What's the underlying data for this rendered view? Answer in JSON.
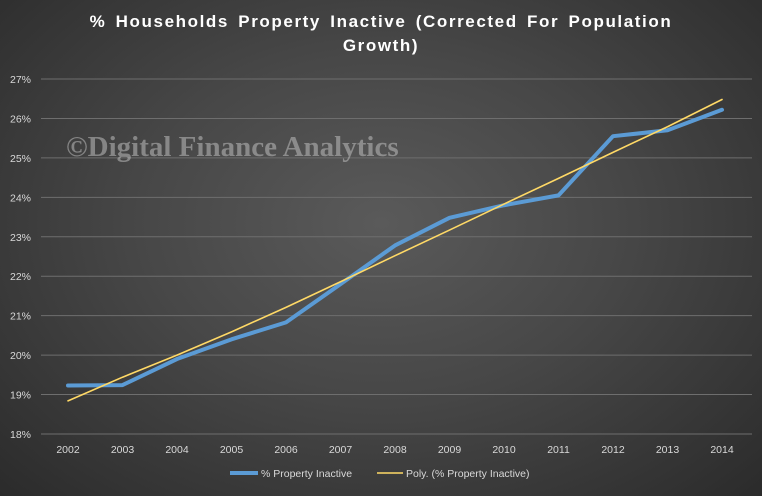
{
  "chart_data": {
    "type": "line",
    "title": "% Households Property Inactive (Corrected For Population Growth)",
    "title_lines": [
      "% Households Property Inactive (Corrected For Population",
      "Growth)"
    ],
    "categories": [
      "2002",
      "2003",
      "2004",
      "2005",
      "2006",
      "2007",
      "2008",
      "2009",
      "2010",
      "2011",
      "2012",
      "2013",
      "2014"
    ],
    "series": [
      {
        "name": "% Property Inactive",
        "color": "#5b9bd5",
        "values": [
          19.23,
          19.24,
          19.9,
          20.4,
          20.83,
          21.8,
          22.78,
          23.48,
          23.8,
          24.05,
          25.55,
          25.7,
          26.22
        ]
      },
      {
        "name": "Poly. (% Property Inactive)",
        "color": "#ffd966",
        "values": [
          18.84,
          19.44,
          20.0,
          20.59,
          21.21,
          21.86,
          22.52,
          23.17,
          23.83,
          24.48,
          25.14,
          25.79,
          26.48
        ]
      }
    ],
    "ylim": [
      18,
      27
    ],
    "yticks": [
      18,
      19,
      20,
      21,
      22,
      23,
      24,
      25,
      26,
      27
    ],
    "ytick_labels": [
      "18%",
      "19%",
      "20%",
      "21%",
      "22%",
      "23%",
      "24%",
      "25%",
      "26%",
      "27%"
    ],
    "xlabel": "",
    "ylabel": "",
    "grid": true,
    "legend_position": "bottom"
  },
  "watermark": "©Digital Finance Analytics"
}
